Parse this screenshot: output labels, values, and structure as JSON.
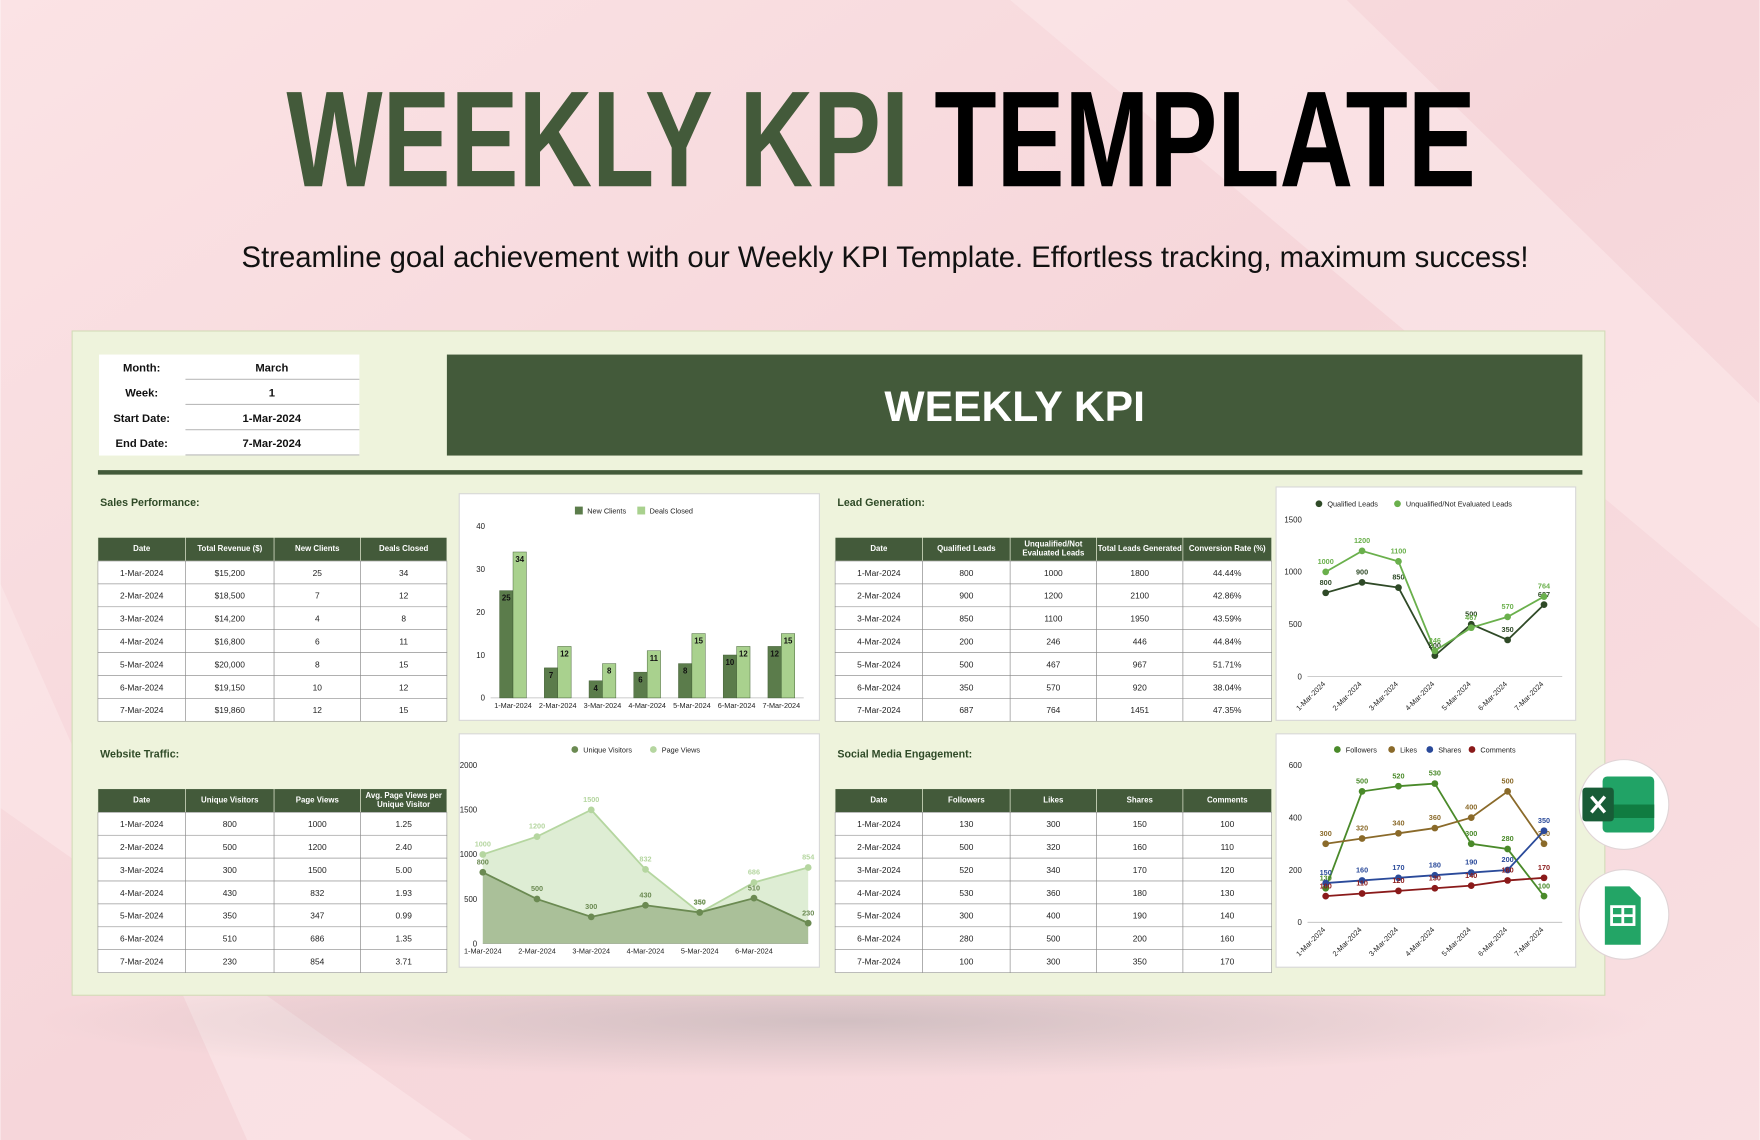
{
  "header": {
    "title_part1": "WEEKLY KPI",
    "title_part2": "TEMPLATE",
    "subtitle": "Streamline goal achievement with our Weekly KPI Template. Effortless tracking, maximum success!"
  },
  "info": {
    "rows": [
      [
        "Month:",
        "March"
      ],
      [
        "Week:",
        "1"
      ],
      [
        "Start Date:",
        "1-Mar-2024"
      ],
      [
        "End Date:",
        "7-Mar-2024"
      ]
    ]
  },
  "banner": "WEEKLY KPI",
  "sales_performance": {
    "title": "Sales Performance:",
    "columns": [
      "Date",
      "Total Revenue ($)",
      "New Clients",
      "Deals Closed"
    ],
    "rows": [
      [
        "1-Mar-2024",
        "$15,200",
        "25",
        "34"
      ],
      [
        "2-Mar-2024",
        "$18,500",
        "7",
        "12"
      ],
      [
        "3-Mar-2024",
        "$14,200",
        "4",
        "8"
      ],
      [
        "4-Mar-2024",
        "$16,800",
        "6",
        "11"
      ],
      [
        "5-Mar-2024",
        "$20,000",
        "8",
        "15"
      ],
      [
        "6-Mar-2024",
        "$19,150",
        "10",
        "12"
      ],
      [
        "7-Mar-2024",
        "$19,860",
        "12",
        "15"
      ]
    ]
  },
  "lead_generation": {
    "title": "Lead Generation:",
    "columns": [
      "Date",
      "Qualified Leads",
      "Unqualified/Not Evaluated Leads",
      "Total Leads Generated",
      "Conversion Rate (%)"
    ],
    "rows": [
      [
        "1-Mar-2024",
        "800",
        "1000",
        "1800",
        "44.44%"
      ],
      [
        "2-Mar-2024",
        "900",
        "1200",
        "2100",
        "42.86%"
      ],
      [
        "3-Mar-2024",
        "850",
        "1100",
        "1950",
        "43.59%"
      ],
      [
        "4-Mar-2024",
        "200",
        "246",
        "446",
        "44.84%"
      ],
      [
        "5-Mar-2024",
        "500",
        "467",
        "967",
        "51.71%"
      ],
      [
        "6-Mar-2024",
        "350",
        "570",
        "920",
        "38.04%"
      ],
      [
        "7-Mar-2024",
        "687",
        "764",
        "1451",
        "47.35%"
      ]
    ]
  },
  "website_traffic": {
    "title": "Website Traffic:",
    "columns": [
      "Date",
      "Unique Visitors",
      "Page Views",
      "Avg. Page Views per Unique Visitor"
    ],
    "rows": [
      [
        "1-Mar-2024",
        "800",
        "1000",
        "1.25"
      ],
      [
        "2-Mar-2024",
        "500",
        "1200",
        "2.40"
      ],
      [
        "3-Mar-2024",
        "300",
        "1500",
        "5.00"
      ],
      [
        "4-Mar-2024",
        "430",
        "832",
        "1.93"
      ],
      [
        "5-Mar-2024",
        "350",
        "347",
        "0.99"
      ],
      [
        "6-Mar-2024",
        "510",
        "686",
        "1.35"
      ],
      [
        "7-Mar-2024",
        "230",
        "854",
        "3.71"
      ]
    ]
  },
  "social_media_engagement": {
    "title": "Social Media Engagement:",
    "columns": [
      "Date",
      "Followers",
      "Likes",
      "Shares",
      "Comments"
    ],
    "rows": [
      [
        "1-Mar-2024",
        "130",
        "300",
        "150",
        "100"
      ],
      [
        "2-Mar-2024",
        "500",
        "320",
        "160",
        "110"
      ],
      [
        "3-Mar-2024",
        "520",
        "340",
        "170",
        "120"
      ],
      [
        "4-Mar-2024",
        "530",
        "360",
        "180",
        "130"
      ],
      [
        "5-Mar-2024",
        "300",
        "400",
        "190",
        "140"
      ],
      [
        "6-Mar-2024",
        "280",
        "500",
        "200",
        "160"
      ],
      [
        "7-Mar-2024",
        "100",
        "300",
        "350",
        "170"
      ]
    ]
  },
  "chart_data": [
    {
      "type": "bar",
      "categories": [
        "1-Mar-2024",
        "2-Mar-2024",
        "3-Mar-2024",
        "4-Mar-2024",
        "5-Mar-2024",
        "6-Mar-2024",
        "7-Mar-2024"
      ],
      "series": [
        {
          "name": "New Clients",
          "color": "#5b7c4b",
          "values": [
            25,
            7,
            4,
            6,
            8,
            10,
            12
          ]
        },
        {
          "name": "Deals Closed",
          "color": "#a9d18e",
          "values": [
            34,
            12,
            8,
            11,
            15,
            12,
            15
          ]
        }
      ],
      "ylim": [
        0,
        40
      ],
      "yticks": [
        0,
        10,
        20,
        30,
        40
      ]
    },
    {
      "type": "line",
      "categories": [
        "1-Mar-2024",
        "2-Mar-2024",
        "3-Mar-2024",
        "4-Mar-2024",
        "5-Mar-2024",
        "6-Mar-2024",
        "7-Mar-2024"
      ],
      "series": [
        {
          "name": "Qualified Leads",
          "color": "#2f4a27",
          "values": [
            800,
            900,
            850,
            200,
            500,
            350,
            687
          ]
        },
        {
          "name": "Unqualified/Not Evaluated Leads",
          "color": "#6ab04c",
          "values": [
            1000,
            1200,
            1100,
            246,
            467,
            570,
            764
          ]
        }
      ],
      "ylim": [
        0,
        1500
      ],
      "yticks": [
        0,
        500,
        1000,
        1500
      ]
    },
    {
      "type": "area",
      "categories": [
        "1-Mar-2024",
        "2-Mar-2024",
        "3-Mar-2024",
        "4-Mar-2024",
        "5-Mar-2024",
        "6-Mar-2024",
        null
      ],
      "series": [
        {
          "name": "Unique Visitors",
          "color": "#6b8a52",
          "values": [
            800,
            500,
            300,
            430,
            350,
            510,
            230
          ]
        },
        {
          "name": "Page Views",
          "color": "#b5d6a0",
          "values": [
            1000,
            1200,
            1500,
            832,
            347,
            686,
            854
          ]
        }
      ],
      "ylim": [
        0,
        2000
      ],
      "yticks": [
        0,
        500,
        1000,
        1500,
        2000
      ]
    },
    {
      "type": "line",
      "categories": [
        "1-Mar-2024",
        "2-Mar-2024",
        "3-Mar-2024",
        "4-Mar-2024",
        "5-Mar-2024",
        "6-Mar-2024",
        "7-Mar-2024"
      ],
      "series": [
        {
          "name": "Followers",
          "color": "#4a8a2a",
          "values": [
            130,
            500,
            520,
            530,
            300,
            280,
            100
          ]
        },
        {
          "name": "Likes",
          "color": "#8a6a2a",
          "values": [
            300,
            320,
            340,
            360,
            400,
            500,
            300
          ]
        },
        {
          "name": "Shares",
          "color": "#2a4a9a",
          "values": [
            150,
            160,
            170,
            180,
            190,
            200,
            350
          ]
        },
        {
          "name": "Comments",
          "color": "#8a1a1a",
          "values": [
            100,
            110,
            120,
            130,
            140,
            160,
            170
          ]
        }
      ],
      "ylim": [
        0,
        600
      ],
      "yticks": [
        0,
        200,
        400,
        600
      ]
    }
  ]
}
